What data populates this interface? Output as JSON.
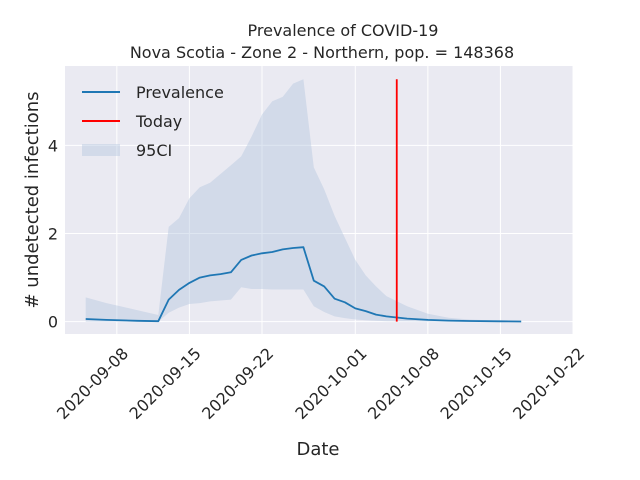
{
  "chart_data": {
    "type": "line",
    "title": [
      "Prevalence of COVID-19",
      "Nova Scotia - Zone 2 - Northern, pop. = 148368"
    ],
    "xlabel": "Date",
    "ylabel": "# undetected infections",
    "x_ticks": [
      "2020-09-08",
      "2020-09-15",
      "2020-09-22",
      "2020-10-01",
      "2020-10-08",
      "2020-10-15",
      "2020-10-22"
    ],
    "y_ticks": [
      0,
      2,
      4
    ],
    "ylim": [
      -0.28,
      5.8
    ],
    "xlim": [
      "2020-09-03",
      "2020-10-22"
    ],
    "grid": true,
    "legend_position": "top-left",
    "series": [
      {
        "name": "Prevalence",
        "color": "#1f77b4",
        "points": [
          [
            "2020-09-05",
            0.06
          ],
          [
            "2020-09-07",
            0.04
          ],
          [
            "2020-09-10",
            0.02
          ],
          [
            "2020-09-12",
            0.01
          ],
          [
            "2020-09-13",
            0.5
          ],
          [
            "2020-09-14",
            0.72
          ],
          [
            "2020-09-15",
            0.88
          ],
          [
            "2020-09-16",
            1.0
          ],
          [
            "2020-09-17",
            1.05
          ],
          [
            "2020-09-18",
            1.08
          ],
          [
            "2020-09-19",
            1.12
          ],
          [
            "2020-09-20",
            1.4
          ],
          [
            "2020-09-21",
            1.5
          ],
          [
            "2020-09-22",
            1.55
          ],
          [
            "2020-09-23",
            1.58
          ],
          [
            "2020-09-24",
            1.64
          ],
          [
            "2020-09-25",
            1.67
          ],
          [
            "2020-09-26",
            1.69
          ],
          [
            "2020-09-27",
            0.93
          ],
          [
            "2020-09-28",
            0.8
          ],
          [
            "2020-09-29",
            0.52
          ],
          [
            "2020-09-30",
            0.44
          ],
          [
            "2020-10-01",
            0.3
          ],
          [
            "2020-10-02",
            0.24
          ],
          [
            "2020-10-03",
            0.16
          ],
          [
            "2020-10-04",
            0.12
          ],
          [
            "2020-10-06",
            0.07
          ],
          [
            "2020-10-08",
            0.04
          ],
          [
            "2020-10-10",
            0.025
          ],
          [
            "2020-10-12",
            0.015
          ],
          [
            "2020-10-15",
            0.008
          ],
          [
            "2020-10-17",
            0.004
          ]
        ]
      },
      {
        "name": "Today",
        "color": "#ff0000",
        "date": "2020-10-05",
        "y_range": [
          0,
          5.5
        ]
      },
      {
        "name": "95CI",
        "color": "#b0c4de",
        "band": [
          [
            "2020-09-05",
            0.0,
            0.55
          ],
          [
            "2020-09-07",
            0.0,
            0.42
          ],
          [
            "2020-09-10",
            0.0,
            0.26
          ],
          [
            "2020-09-12",
            0.0,
            0.15
          ],
          [
            "2020-09-13",
            0.2,
            2.15
          ],
          [
            "2020-09-14",
            0.32,
            2.35
          ],
          [
            "2020-09-15",
            0.4,
            2.8
          ],
          [
            "2020-09-16",
            0.42,
            3.05
          ],
          [
            "2020-09-17",
            0.46,
            3.15
          ],
          [
            "2020-09-18",
            0.48,
            3.35
          ],
          [
            "2020-09-19",
            0.5,
            3.55
          ],
          [
            "2020-09-20",
            0.78,
            3.75
          ],
          [
            "2020-09-21",
            0.74,
            4.2
          ],
          [
            "2020-09-22",
            0.74,
            4.7
          ],
          [
            "2020-09-23",
            0.73,
            5.0
          ],
          [
            "2020-09-24",
            0.73,
            5.1
          ],
          [
            "2020-09-25",
            0.73,
            5.4
          ],
          [
            "2020-09-26",
            0.73,
            5.5
          ],
          [
            "2020-09-27",
            0.35,
            3.5
          ],
          [
            "2020-09-28",
            0.22,
            3.0
          ],
          [
            "2020-09-29",
            0.12,
            2.4
          ],
          [
            "2020-09-30",
            0.08,
            1.9
          ],
          [
            "2020-10-01",
            0.05,
            1.4
          ],
          [
            "2020-10-02",
            0.03,
            1.05
          ],
          [
            "2020-10-03",
            0.02,
            0.8
          ],
          [
            "2020-10-04",
            0.01,
            0.58
          ],
          [
            "2020-10-06",
            0.005,
            0.35
          ],
          [
            "2020-10-08",
            0.002,
            0.18
          ],
          [
            "2020-10-10",
            0.0,
            0.09
          ],
          [
            "2020-10-12",
            0.0,
            0.05
          ],
          [
            "2020-10-15",
            0.0,
            0.02
          ],
          [
            "2020-10-17",
            0.0,
            0.01
          ]
        ]
      }
    ]
  }
}
